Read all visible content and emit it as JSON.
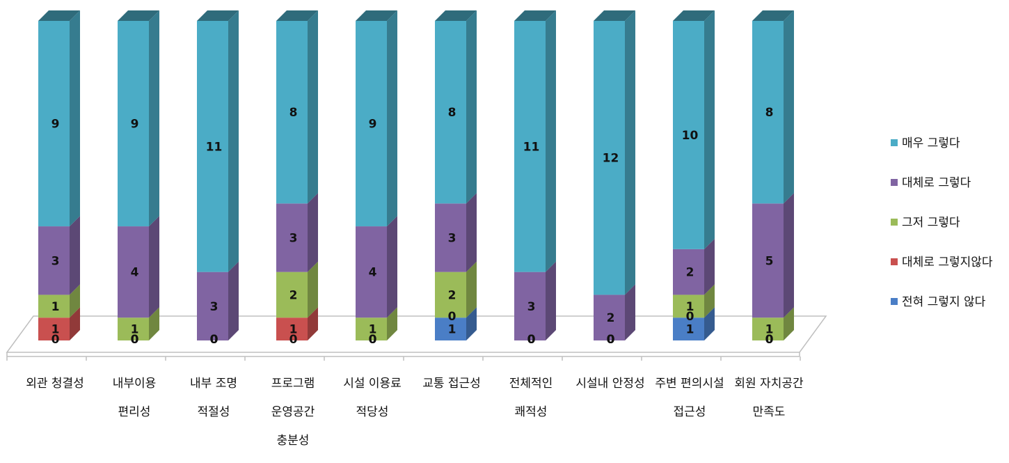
{
  "chart_data": {
    "type": "bar",
    "stacked": true,
    "three_d": true,
    "title": "",
    "xlabel": "",
    "ylabel": "",
    "grid": false,
    "legend_position": "right",
    "categories": [
      [
        "외관 청결성"
      ],
      [
        "내부이용",
        "편리성"
      ],
      [
        "내부 조명",
        "적절성"
      ],
      [
        "프로그램",
        "운영공간",
        "충분성"
      ],
      [
        "시설 이용료",
        "적당성"
      ],
      [
        "교통 접근성"
      ],
      [
        "전체적인",
        "쾌적성"
      ],
      [
        "시설내 안정성"
      ],
      [
        "주변 편의시설",
        "접근성"
      ],
      [
        "회원 자치공간",
        "만족도"
      ]
    ],
    "series": [
      {
        "name": "전혀 그렇지 않다",
        "color": "#4a7ec6",
        "values": [
          0,
          0,
          0,
          0,
          0,
          1,
          0,
          0,
          1,
          0
        ]
      },
      {
        "name": "대체로 그렇지않다",
        "color": "#c9504f",
        "values": [
          1,
          0,
          0,
          1,
          0,
          0,
          0,
          0,
          0,
          0
        ]
      },
      {
        "name": "그저 그렇다",
        "color": "#9bbb59",
        "values": [
          1,
          1,
          0,
          2,
          1,
          2,
          0,
          0,
          1,
          1
        ]
      },
      {
        "name": "대체로 그렇다",
        "color": "#8064a2",
        "values": [
          3,
          4,
          3,
          3,
          4,
          3,
          3,
          2,
          2,
          5
        ]
      },
      {
        "name": "매우 그렇다",
        "color": "#4bacc6",
        "values": [
          9,
          9,
          11,
          8,
          9,
          8,
          11,
          12,
          10,
          8
        ]
      }
    ],
    "ylim": [
      0,
      14
    ],
    "legend_order": [
      4,
      3,
      2,
      1,
      0
    ]
  }
}
